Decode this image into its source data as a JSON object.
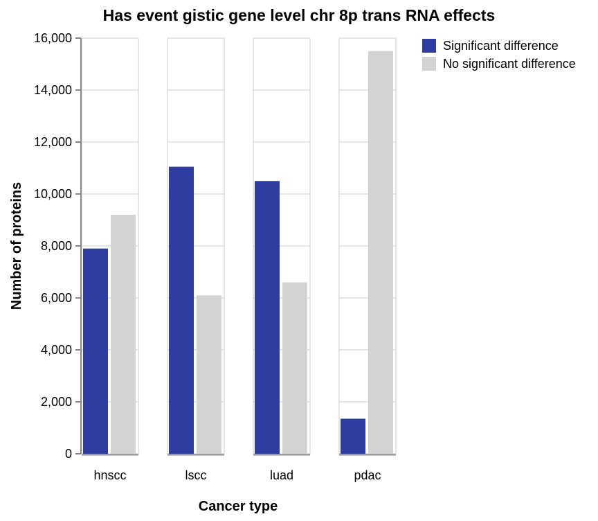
{
  "chart_data": {
    "type": "bar",
    "title": "Has event gistic gene level chr 8p trans RNA effects",
    "xlabel": "Cancer type",
    "ylabel": "Number of proteins",
    "categories": [
      "hnscc",
      "lscc",
      "luad",
      "pdac"
    ],
    "series": [
      {
        "name": "Significant difference",
        "color": "#2e3d9f",
        "values": [
          7900,
          11050,
          10500,
          1350
        ]
      },
      {
        "name": "No significant difference",
        "color": "#d3d3d3",
        "values": [
          9200,
          6100,
          6600,
          15500
        ]
      }
    ],
    "ylim": [
      0,
      16000
    ],
    "yticks": [
      "0",
      "2,000",
      "4,000",
      "6,000",
      "8,000",
      "10,000",
      "12,000",
      "14,000",
      "16,000"
    ],
    "grid": true,
    "legend_position": "top-right"
  }
}
